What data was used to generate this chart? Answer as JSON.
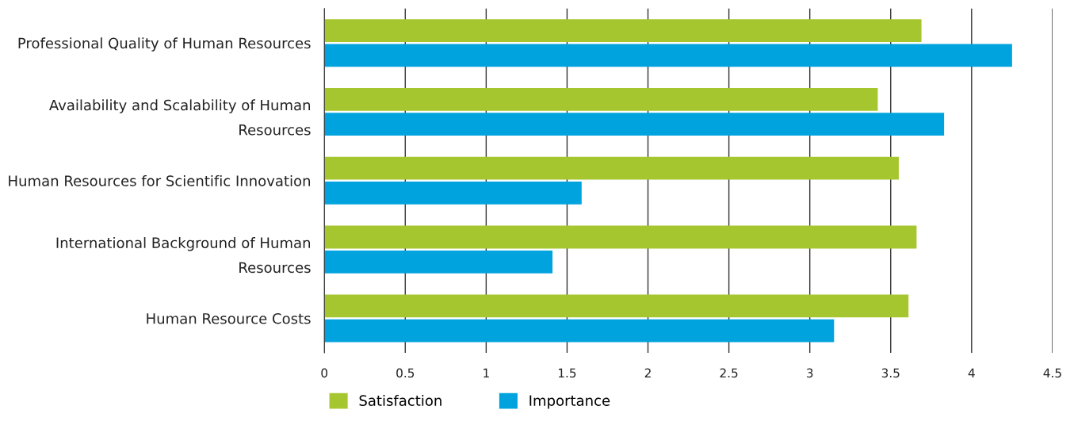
{
  "chart_data": {
    "type": "bar",
    "orientation": "horizontal",
    "categories": [
      "Professional Quality of Human Resources",
      "Availability and Scalability of Human Resources",
      "Human Resources for Scientific Innovation",
      "International Background of Human Resources",
      "Human Resource Costs"
    ],
    "series": [
      {
        "name": "Satisfaction",
        "color": "#a6c630",
        "values": [
          3.69,
          3.42,
          3.55,
          3.66,
          3.61
        ]
      },
      {
        "name": "Importance",
        "color": "#00a3dd",
        "values": [
          4.25,
          3.83,
          1.59,
          1.41,
          3.15
        ]
      }
    ],
    "xlim": [
      0,
      4.5
    ],
    "xticks": [
      0,
      0.5,
      1,
      1.5,
      2,
      2.5,
      3,
      3.5,
      4,
      4.5
    ],
    "grid": "x",
    "legend": "bottom"
  }
}
